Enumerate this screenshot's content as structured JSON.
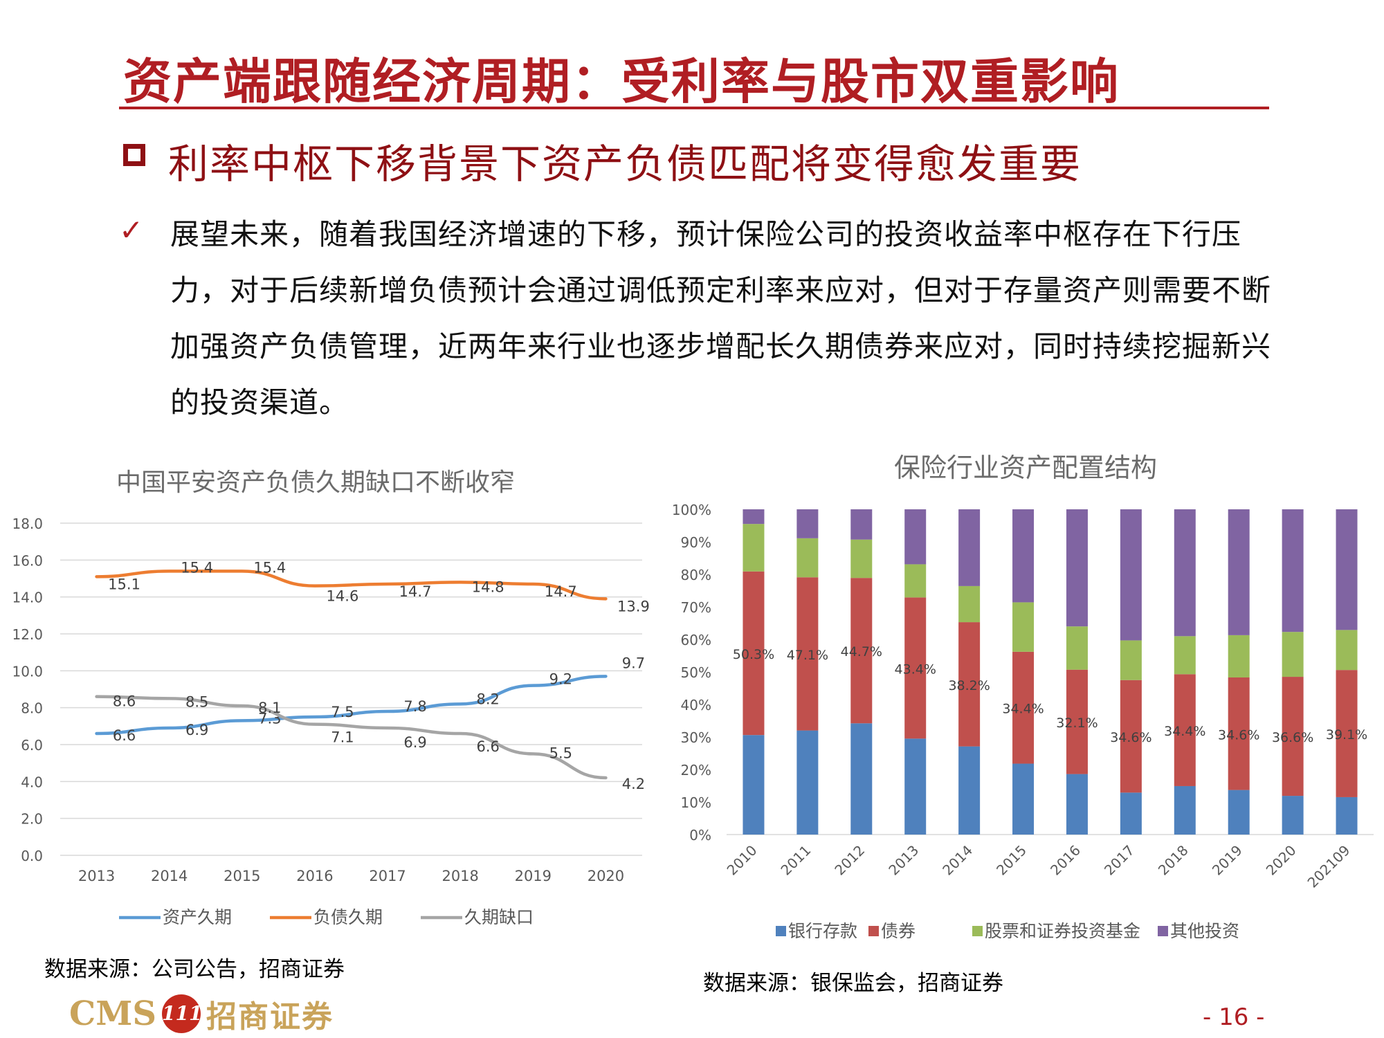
{
  "header": {
    "title": "资产端跟随经济周期：受利率与股市双重影响",
    "subtitle": "利率中枢下移背景下资产负债匹配将变得愈发重要"
  },
  "body": {
    "check_icon": "✓",
    "paragraph": "展望未来，随着我国经济增速的下移，预计保险公司的投资收益率中枢存在下行压力，对于后续新增负债预计会通过调低预定利率来应对，但对于存量资产则需要不断加强资产负债管理，近两年来行业也逐步增配长久期债券来应对，同时持续挖掘新兴的投资渠道。"
  },
  "footer": {
    "left_source": "数据来源：公司公告，招商证券",
    "right_source": "数据来源：银保监会，招商证券",
    "page_number": "- 16 -",
    "logo_text": "CMS",
    "logo_mark": "111",
    "logo_cn": "招商证券"
  },
  "colors": {
    "brand_red": "#b01e23",
    "asset_duration": "#5b9bd5",
    "liability_duration": "#ed7d31",
    "gap": "#a5a5a5",
    "bank_deposit": "#4f81bd",
    "bonds": "#c0504d",
    "stocks_funds": "#9bbb59",
    "other": "#8064a2"
  },
  "chart_data": [
    {
      "type": "line",
      "title": "中国平安资产负债久期缺口不断收窄",
      "x": [
        "2013",
        "2014",
        "2015",
        "2016",
        "2017",
        "2018",
        "2019",
        "2020"
      ],
      "yticks": [
        "0.0",
        "2.0",
        "4.0",
        "6.0",
        "8.0",
        "10.0",
        "12.0",
        "14.0",
        "16.0",
        "18.0"
      ],
      "ylim": [
        0,
        18
      ],
      "grid": true,
      "legend_position": "bottom",
      "series": [
        {
          "name": "资产久期",
          "color": "#5b9bd5",
          "values": [
            6.6,
            6.9,
            7.3,
            7.5,
            7.8,
            8.2,
            9.2,
            9.7
          ]
        },
        {
          "name": "负债久期",
          "color": "#ed7d31",
          "values": [
            15.1,
            15.4,
            15.4,
            14.6,
            14.7,
            14.8,
            14.7,
            13.9
          ]
        },
        {
          "name": "久期缺口",
          "color": "#a5a5a5",
          "values": [
            8.6,
            8.5,
            8.1,
            7.1,
            6.9,
            6.6,
            5.5,
            4.2
          ]
        }
      ]
    },
    {
      "type": "bar",
      "stacked": true,
      "title": "保险行业资产配置结构",
      "categories": [
        "2010",
        "2011",
        "2012",
        "2013",
        "2014",
        "2015",
        "2016",
        "2017",
        "2018",
        "2019",
        "2020",
        "202109"
      ],
      "yticks": [
        "0%",
        "10%",
        "20%",
        "30%",
        "40%",
        "50%",
        "60%",
        "70%",
        "80%",
        "90%",
        "100%"
      ],
      "ylim": [
        0,
        100
      ],
      "legend_position": "bottom",
      "series": [
        {
          "name": "银行存款",
          "color": "#4f81bd",
          "values": [
            30.6,
            32.0,
            34.2,
            29.5,
            27.1,
            21.8,
            18.6,
            12.9,
            14.9,
            13.7,
            11.9,
            11.5
          ]
        },
        {
          "name": "债券",
          "color": "#c0504d",
          "values": [
            50.3,
            47.1,
            44.7,
            43.4,
            38.2,
            34.4,
            32.1,
            34.6,
            34.4,
            34.6,
            36.6,
            39.1
          ]
        },
        {
          "name": "股票和证券投资基金",
          "color": "#9bbb59",
          "values": [
            14.6,
            12.0,
            11.8,
            10.2,
            11.1,
            15.2,
            13.3,
            12.2,
            11.7,
            13.0,
            13.8,
            12.3
          ]
        },
        {
          "name": "其他投资",
          "color": "#8064a2",
          "values": [
            4.5,
            8.9,
            9.3,
            16.9,
            23.6,
            28.6,
            36.0,
            40.3,
            39.0,
            38.7,
            37.7,
            37.1
          ]
        }
      ],
      "data_labels": [
        "50.3%",
        "47.1%",
        "44.7%",
        "43.4%",
        "38.2%",
        "34.4%",
        "32.1%",
        "34.6%",
        "34.4%",
        "34.6%",
        "36.6%",
        "39.1%"
      ]
    }
  ]
}
